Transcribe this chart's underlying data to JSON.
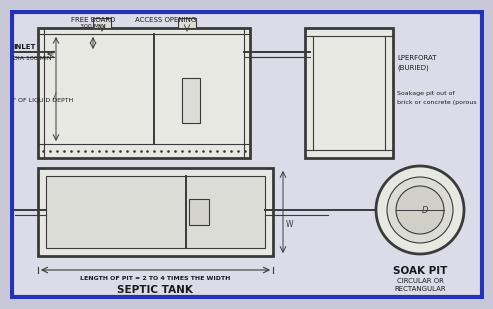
{
  "bg_color": "#dcdce8",
  "border_color": "#2233bb",
  "line_color": "#3a3a3a",
  "fig_bg": "#c8c8d8",
  "labels": {
    "inlet": "INLET",
    "dia": "DIA 100 MIN",
    "free_board": "FREE BOARD",
    "free_board2": "300 MIN",
    "access_opening": "ACCESS OPENING",
    "liquid_depth": "\" OF LIQUID DEPTH",
    "perforated": "LPERFORAT",
    "buried": "(BURIED)",
    "soakage": "Soakage pit out of",
    "soakage2": "brick or concrete (porous",
    "length_label": "LENGTH OF PIT = 2 TO 4 TIMES THE WIDTH",
    "septic_tank": "SEPTIC TANK",
    "soak_pit": "SOAK PIT",
    "circular": "CIRCULAR OR",
    "rectangular": "RECTANGULAR",
    "d_label": "D",
    "w_label": "W"
  }
}
